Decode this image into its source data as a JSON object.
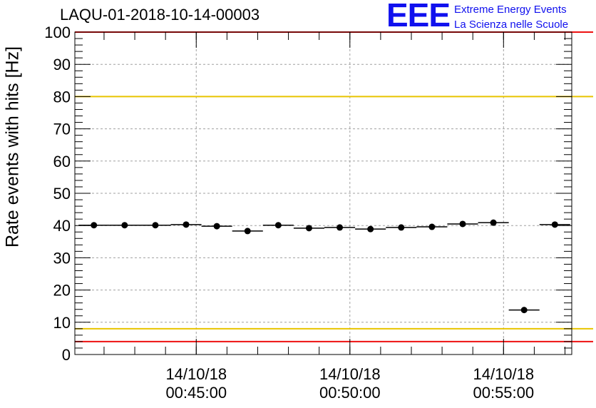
{
  "chart_data": {
    "type": "scatter",
    "title": "LAQU-01-2018-10-14-00003",
    "ylabel": "Rate events with hits [Hz]",
    "xlabel": "",
    "ylim": [
      0,
      100
    ],
    "yticks": [
      0,
      10,
      20,
      30,
      40,
      50,
      60,
      70,
      80,
      90,
      100
    ],
    "x_unit": "minutes after 00:40:00",
    "xlim": [
      0.38,
      16.55
    ],
    "xticks": [
      {
        "x": 4.33,
        "date": "14/10/18",
        "time": "00:45:00"
      },
      {
        "x": 9.33,
        "date": "14/10/18",
        "time": "00:50:00"
      },
      {
        "x": 14.33,
        "date": "14/10/18",
        "time": "00:55:00"
      }
    ],
    "bin_width": 1.0,
    "series": [
      {
        "name": "rate",
        "x": [
          1.0,
          2.0,
          3.0,
          4.0,
          5.0,
          6.0,
          7.0,
          8.0,
          9.0,
          10.0,
          11.0,
          12.0,
          13.0,
          14.0,
          15.0,
          16.0
        ],
        "values": [
          40.1,
          40.1,
          40.1,
          40.3,
          39.8,
          38.3,
          40.1,
          39.2,
          39.4,
          38.9,
          39.4,
          39.6,
          40.5,
          40.9,
          13.8,
          40.3
        ]
      }
    ],
    "reference_lines": [
      {
        "y": 80,
        "color": "#e8c400",
        "label": "upper-warning-line"
      },
      {
        "y": 8,
        "color": "#e8c400",
        "label": "lower-warning-line"
      },
      {
        "y": 100,
        "color": "#ee1111",
        "label": "upper-alarm-line"
      },
      {
        "y": 4,
        "color": "#ee1111",
        "label": "lower-alarm-line"
      }
    ],
    "grid": true
  },
  "logo": {
    "mark": "EEE",
    "line1": "Extreme Energy Events",
    "line2": "La Scienza nelle Scuole"
  }
}
